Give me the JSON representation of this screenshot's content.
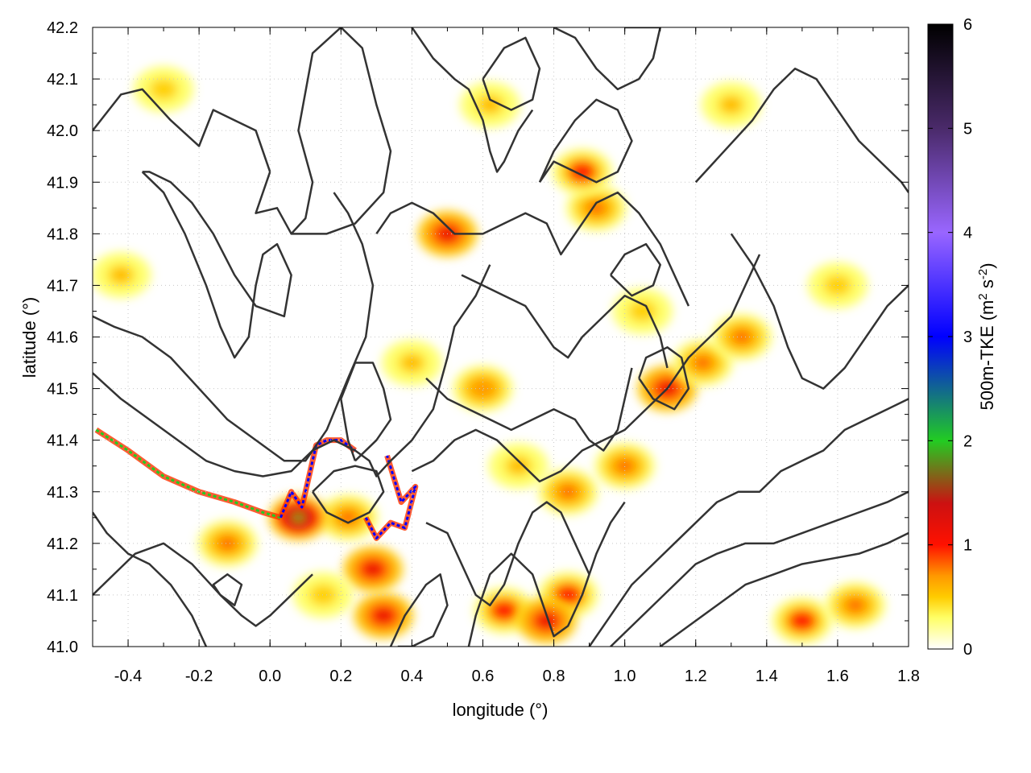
{
  "chart_data": {
    "type": "heatmap",
    "title": "",
    "xlabel": "longitude (°)",
    "ylabel": "latitude (°)",
    "xlim": [
      -0.5,
      1.8
    ],
    "ylim": [
      41.0,
      42.2
    ],
    "xticks": [
      -0.4,
      -0.2,
      0.0,
      0.2,
      0.4,
      0.6,
      0.8,
      1.0,
      1.2,
      1.4,
      1.6,
      1.8
    ],
    "xtick_labels": [
      "-0.4",
      "-0.2",
      "0.0",
      "0.2",
      "0.4",
      "0.6",
      "0.8",
      "1.0",
      "1.2",
      "1.4",
      "1.6",
      "1.8"
    ],
    "yticks": [
      41.0,
      41.1,
      41.2,
      41.3,
      41.4,
      41.5,
      41.6,
      41.7,
      41.8,
      41.9,
      42.0,
      42.1,
      42.2
    ],
    "ytick_labels": [
      "41.0",
      "41.1",
      "41.2",
      "41.3",
      "41.4",
      "41.5",
      "41.6",
      "41.7",
      "41.8",
      "41.9",
      "42.0",
      "42.1",
      "42.2"
    ],
    "grid": true,
    "colorbar": {
      "label_main": "500m-TKE (m",
      "label_sup1": "2",
      "label_mid": " s",
      "label_sup2": "-2",
      "label_end": ")",
      "range": [
        0,
        6
      ],
      "ticks": [
        "0",
        "1",
        "2",
        "3",
        "4",
        "5",
        "6"
      ],
      "colors": [
        "#ffffff",
        "#ffff66",
        "#ffcc00",
        "#ff9900",
        "#ff1100",
        "#cc1111",
        "#22cc22",
        "#0000ff",
        "#9966ff",
        "#4a2a6a",
        "#000000"
      ],
      "stops": [
        0,
        0.3,
        0.5,
        0.7,
        1.0,
        1.4,
        2.0,
        3.0,
        4.0,
        5.0,
        6.0
      ]
    },
    "field_hotspots": [
      {
        "lon": 0.5,
        "lat": 41.8,
        "tke": 1.2
      },
      {
        "lon": 0.29,
        "lat": 41.15,
        "tke": 1.3
      },
      {
        "lon": 0.32,
        "lat": 41.06,
        "tke": 1.1
      },
      {
        "lon": 0.22,
        "lat": 41.25,
        "tke": 0.9
      },
      {
        "lon": 0.08,
        "lat": 41.25,
        "tke": 1.6
      },
      {
        "lon": -0.12,
        "lat": 41.2,
        "tke": 0.8
      },
      {
        "lon": 0.92,
        "lat": 41.85,
        "tke": 0.9
      },
      {
        "lon": 0.88,
        "lat": 41.92,
        "tke": 1.0
      },
      {
        "lon": 1.12,
        "lat": 41.5,
        "tke": 1.1
      },
      {
        "lon": 1.22,
        "lat": 41.55,
        "tke": 0.9
      },
      {
        "lon": 1.33,
        "lat": 41.6,
        "tke": 0.8
      },
      {
        "lon": 0.66,
        "lat": 41.07,
        "tke": 1.0
      },
      {
        "lon": 0.84,
        "lat": 41.1,
        "tke": 1.0
      },
      {
        "lon": 0.78,
        "lat": 41.05,
        "tke": 1.1
      },
      {
        "lon": 1.5,
        "lat": 41.05,
        "tke": 1.0
      },
      {
        "lon": 1.65,
        "lat": 41.08,
        "tke": 0.9
      },
      {
        "lon": 0.84,
        "lat": 41.3,
        "tke": 0.9
      },
      {
        "lon": 1.0,
        "lat": 41.35,
        "tke": 0.9
      },
      {
        "lon": 0.6,
        "lat": 41.5,
        "tke": 0.7
      },
      {
        "lon": -0.3,
        "lat": 42.08,
        "tke": 0.5
      },
      {
        "lon": -0.42,
        "lat": 41.72,
        "tke": 0.6
      },
      {
        "lon": 1.3,
        "lat": 42.05,
        "tke": 0.6
      },
      {
        "lon": 0.4,
        "lat": 41.55,
        "tke": 0.6
      },
      {
        "lon": 0.62,
        "lat": 42.05,
        "tke": 0.6
      },
      {
        "lon": 1.05,
        "lat": 41.65,
        "tke": 0.5
      },
      {
        "lon": 1.6,
        "lat": 41.7,
        "tke": 0.5
      },
      {
        "lon": 0.15,
        "lat": 41.1,
        "tke": 0.5
      },
      {
        "lon": 0.7,
        "lat": 41.35,
        "tke": 0.6
      }
    ],
    "high_tke_streaks": [
      {
        "lon": [
          -0.49,
          -0.4,
          -0.3,
          -0.2,
          -0.1,
          -0.02,
          0.03
        ],
        "lat": [
          41.42,
          41.38,
          41.33,
          41.3,
          41.28,
          41.26,
          41.25
        ],
        "tke": 1.5
      },
      {
        "lon": [
          0.03,
          0.06,
          0.09,
          0.11,
          0.13,
          0.16,
          0.2,
          0.24
        ],
        "lat": [
          41.25,
          41.3,
          41.27,
          41.33,
          41.39,
          41.4,
          41.4,
          41.38
        ],
        "tke": 2.6
      },
      {
        "lon": [
          0.27,
          0.3,
          0.34,
          0.38,
          0.41,
          0.37,
          0.33
        ],
        "lat": [
          41.25,
          41.21,
          41.24,
          41.23,
          41.31,
          41.28,
          41.37
        ],
        "tke": 2.4
      }
    ],
    "contours": [
      {
        "lon": [
          -0.5,
          -0.42,
          -0.36,
          -0.28,
          -0.2,
          -0.16,
          -0.1,
          -0.04,
          0.0
        ],
        "lat": [
          42.0,
          42.07,
          42.08,
          42.02,
          41.97,
          42.04,
          42.02,
          42.0,
          41.92
        ]
      },
      {
        "lon": [
          0.0,
          -0.04,
          0.02,
          0.06,
          0.1,
          0.12,
          0.08,
          0.12,
          0.2,
          0.26,
          0.3,
          0.34,
          0.32,
          0.24,
          0.16,
          0.1,
          0.06
        ],
        "lat": [
          41.92,
          41.84,
          41.85,
          41.8,
          41.83,
          41.9,
          42.0,
          42.15,
          42.2,
          42.16,
          42.05,
          41.96,
          41.88,
          41.82,
          41.8,
          41.8,
          41.8
        ]
      },
      {
        "lon": [
          -0.36,
          -0.3,
          -0.24,
          -0.18,
          -0.14,
          -0.1,
          -0.06,
          -0.04,
          -0.02,
          0.02,
          0.06,
          0.04,
          -0.04,
          -0.1,
          -0.16,
          -0.22,
          -0.28,
          -0.34,
          -0.36
        ],
        "lat": [
          41.92,
          41.88,
          41.8,
          41.7,
          41.62,
          41.56,
          41.6,
          41.7,
          41.76,
          41.78,
          41.72,
          41.64,
          41.66,
          41.72,
          41.8,
          41.86,
          41.9,
          41.92,
          41.92
        ]
      },
      {
        "lon": [
          -0.5,
          -0.44,
          -0.36,
          -0.28,
          -0.2,
          -0.12,
          -0.04,
          0.04,
          0.1,
          0.16,
          0.22,
          0.27,
          0.29,
          0.26,
          0.22,
          0.18
        ],
        "lat": [
          41.64,
          41.62,
          41.6,
          41.56,
          41.5,
          41.44,
          41.4,
          41.36,
          41.36,
          41.42,
          41.52,
          41.6,
          41.7,
          41.78,
          41.84,
          41.88
        ]
      },
      {
        "lon": [
          -0.5,
          -0.42,
          -0.34,
          -0.26,
          -0.18,
          -0.1,
          -0.02,
          0.06,
          0.12,
          0.18,
          0.24,
          0.28,
          0.3,
          0.34,
          0.4,
          0.46,
          0.5,
          0.52,
          0.58,
          0.62
        ],
        "lat": [
          41.53,
          41.48,
          41.44,
          41.4,
          41.36,
          41.34,
          41.33,
          41.34,
          41.38,
          41.4,
          41.38,
          41.36,
          41.33,
          41.36,
          41.4,
          41.46,
          41.56,
          41.62,
          41.68,
          41.74
        ]
      },
      {
        "lon": [
          0.24,
          0.22,
          0.2,
          0.24,
          0.29,
          0.32,
          0.34,
          0.3,
          0.24
        ],
        "lat": [
          41.36,
          41.4,
          41.48,
          41.55,
          41.55,
          41.5,
          41.44,
          41.4,
          41.36
        ]
      },
      {
        "lon": [
          0.12,
          0.16,
          0.22,
          0.28,
          0.32,
          0.3,
          0.24,
          0.18,
          0.12
        ],
        "lat": [
          41.3,
          41.26,
          41.24,
          41.26,
          41.3,
          41.34,
          41.35,
          41.34,
          41.3
        ]
      },
      {
        "lon": [
          0.3,
          0.34,
          0.4,
          0.46,
          0.52,
          0.6,
          0.66,
          0.72,
          0.78,
          0.82,
          0.86,
          0.92,
          0.98,
          1.04,
          1.1,
          1.14,
          1.18
        ],
        "lat": [
          41.8,
          41.84,
          41.86,
          41.84,
          41.8,
          41.8,
          41.82,
          41.84,
          41.82,
          41.76,
          41.8,
          41.86,
          41.88,
          41.84,
          41.78,
          41.72,
          41.66
        ]
      },
      {
        "lon": [
          0.54,
          0.6,
          0.66,
          0.72,
          0.76,
          0.8,
          0.84,
          0.88,
          0.94,
          1.0,
          1.06,
          1.1,
          1.12
        ],
        "lat": [
          41.72,
          41.7,
          41.68,
          41.66,
          41.62,
          41.58,
          41.56,
          41.6,
          41.64,
          41.68,
          41.66,
          41.6,
          41.54
        ]
      },
      {
        "lon": [
          0.44,
          0.5,
          0.56,
          0.62,
          0.68,
          0.74,
          0.8,
          0.86,
          0.9,
          0.94,
          0.98,
          1.0,
          1.02
        ],
        "lat": [
          41.52,
          41.48,
          41.46,
          41.44,
          41.42,
          41.44,
          41.46,
          41.44,
          41.4,
          41.38,
          41.42,
          41.48,
          41.54
        ]
      },
      {
        "lon": [
          0.4,
          0.46,
          0.52,
          0.58,
          0.64,
          0.7,
          0.76,
          0.82,
          0.88,
          0.94,
          1.0,
          1.06,
          1.12,
          1.18,
          1.24,
          1.3,
          1.34,
          1.38
        ],
        "lat": [
          41.34,
          41.36,
          41.4,
          41.42,
          41.4,
          41.36,
          41.32,
          41.34,
          41.38,
          41.4,
          41.42,
          41.46,
          41.5,
          41.56,
          41.6,
          41.64,
          41.7,
          41.76
        ]
      },
      {
        "lon": [
          0.44,
          0.5,
          0.54,
          0.58,
          0.62,
          0.66,
          0.7,
          0.74,
          0.78,
          0.82,
          0.86,
          0.9
        ],
        "lat": [
          41.24,
          41.22,
          41.16,
          41.1,
          41.08,
          41.12,
          41.2,
          41.26,
          41.28,
          41.26,
          41.2,
          41.14
        ]
      },
      {
        "lon": [
          0.56,
          0.58,
          0.62,
          0.68,
          0.74,
          0.78,
          0.8,
          0.84,
          0.88,
          0.92,
          0.96,
          1.0
        ],
        "lat": [
          41.0,
          41.06,
          41.14,
          41.18,
          41.14,
          41.06,
          41.02,
          41.04,
          41.1,
          41.18,
          41.24,
          41.28
        ]
      },
      {
        "lon": [
          0.9,
          0.96,
          1.02,
          1.08,
          1.14,
          1.2,
          1.26,
          1.32,
          1.38,
          1.44,
          1.5,
          1.56,
          1.62,
          1.68,
          1.74,
          1.8
        ],
        "lat": [
          41.0,
          41.06,
          41.12,
          41.16,
          41.2,
          41.24,
          41.28,
          41.3,
          41.3,
          41.34,
          41.36,
          41.38,
          41.42,
          41.44,
          41.46,
          41.48
        ]
      },
      {
        "lon": [
          0.96,
          1.02,
          1.08,
          1.14,
          1.2,
          1.26,
          1.34,
          1.42,
          1.5,
          1.58,
          1.66,
          1.74,
          1.8
        ],
        "lat": [
          41.0,
          41.04,
          41.08,
          41.12,
          41.16,
          41.18,
          41.2,
          41.2,
          41.22,
          41.24,
          41.26,
          41.28,
          41.3
        ]
      },
      {
        "lon": [
          1.1,
          1.18,
          1.26,
          1.34,
          1.42,
          1.5,
          1.58,
          1.66,
          1.74,
          1.8
        ],
        "lat": [
          41.0,
          41.04,
          41.08,
          41.12,
          41.14,
          41.16,
          41.17,
          41.18,
          41.2,
          41.22
        ]
      },
      {
        "lon": [
          1.2,
          1.28,
          1.36,
          1.42,
          1.48,
          1.54,
          1.6,
          1.66,
          1.72,
          1.78,
          1.8
        ],
        "lat": [
          41.9,
          41.96,
          42.02,
          42.08,
          42.12,
          42.1,
          42.04,
          41.98,
          41.94,
          41.9,
          41.88
        ]
      },
      {
        "lon": [
          1.3,
          1.36,
          1.42,
          1.46,
          1.5,
          1.56,
          1.62,
          1.68,
          1.74,
          1.8
        ],
        "lat": [
          41.8,
          41.74,
          41.66,
          41.58,
          41.52,
          41.5,
          41.54,
          41.6,
          41.66,
          41.7
        ]
      },
      {
        "lon": [
          0.76,
          0.8,
          0.86,
          0.92,
          0.98,
          1.02,
          0.98,
          0.92,
          0.86,
          0.8,
          0.76
        ],
        "lat": [
          41.9,
          41.96,
          42.02,
          42.06,
          42.04,
          41.98,
          41.92,
          41.9,
          41.92,
          41.94,
          41.9
        ]
      },
      {
        "lon": [
          0.6,
          0.66,
          0.72,
          0.76,
          0.74,
          0.68,
          0.62,
          0.6
        ],
        "lat": [
          42.1,
          42.16,
          42.18,
          42.12,
          42.06,
          42.04,
          42.06,
          42.1
        ]
      },
      {
        "lon": [
          0.4,
          0.46,
          0.52,
          0.56,
          0.6,
          0.62,
          0.64,
          0.66,
          0.7,
          0.74
        ],
        "lat": [
          42.2,
          42.14,
          42.1,
          42.08,
          42.02,
          41.96,
          41.92,
          41.94,
          42.0,
          42.04
        ]
      },
      {
        "lon": [
          0.8,
          0.86,
          0.92,
          0.98,
          1.04,
          1.08,
          1.1,
          1.06,
          1.0
        ],
        "lat": [
          42.2,
          42.18,
          42.12,
          42.08,
          42.1,
          42.14,
          42.2,
          42.2,
          42.2
        ]
      },
      {
        "lon": [
          1.04,
          1.08,
          1.14,
          1.18,
          1.16,
          1.12,
          1.06,
          1.04
        ],
        "lat": [
          41.52,
          41.48,
          41.46,
          41.5,
          41.56,
          41.58,
          41.56,
          41.52
        ]
      },
      {
        "lon": [
          -0.5,
          -0.44,
          -0.38,
          -0.3,
          -0.22,
          -0.14,
          -0.08,
          -0.04,
          0.0,
          0.06,
          0.12
        ],
        "lat": [
          41.1,
          41.14,
          41.18,
          41.2,
          41.16,
          41.1,
          41.06,
          41.04,
          41.06,
          41.1,
          41.14
        ]
      },
      {
        "lon": [
          -0.5,
          -0.46,
          -0.4,
          -0.34,
          -0.28,
          -0.22,
          -0.18
        ],
        "lat": [
          41.26,
          41.22,
          41.18,
          41.16,
          41.12,
          41.06,
          41.0
        ]
      },
      {
        "lon": [
          -0.14,
          -0.1,
          -0.08,
          -0.12,
          -0.16,
          -0.14
        ],
        "lat": [
          41.1,
          41.08,
          41.12,
          41.14,
          41.12,
          41.1
        ]
      },
      {
        "lon": [
          0.34,
          0.38,
          0.44,
          0.48,
          0.5,
          0.46,
          0.4,
          0.36
        ],
        "lat": [
          41.0,
          41.06,
          41.12,
          41.14,
          41.08,
          41.02,
          41.0,
          41.0
        ]
      },
      {
        "lon": [
          0.96,
          1.0,
          1.06,
          1.1,
          1.08,
          1.02,
          0.96
        ],
        "lat": [
          41.72,
          41.76,
          41.78,
          41.74,
          41.7,
          41.68,
          41.72
        ]
      }
    ]
  }
}
